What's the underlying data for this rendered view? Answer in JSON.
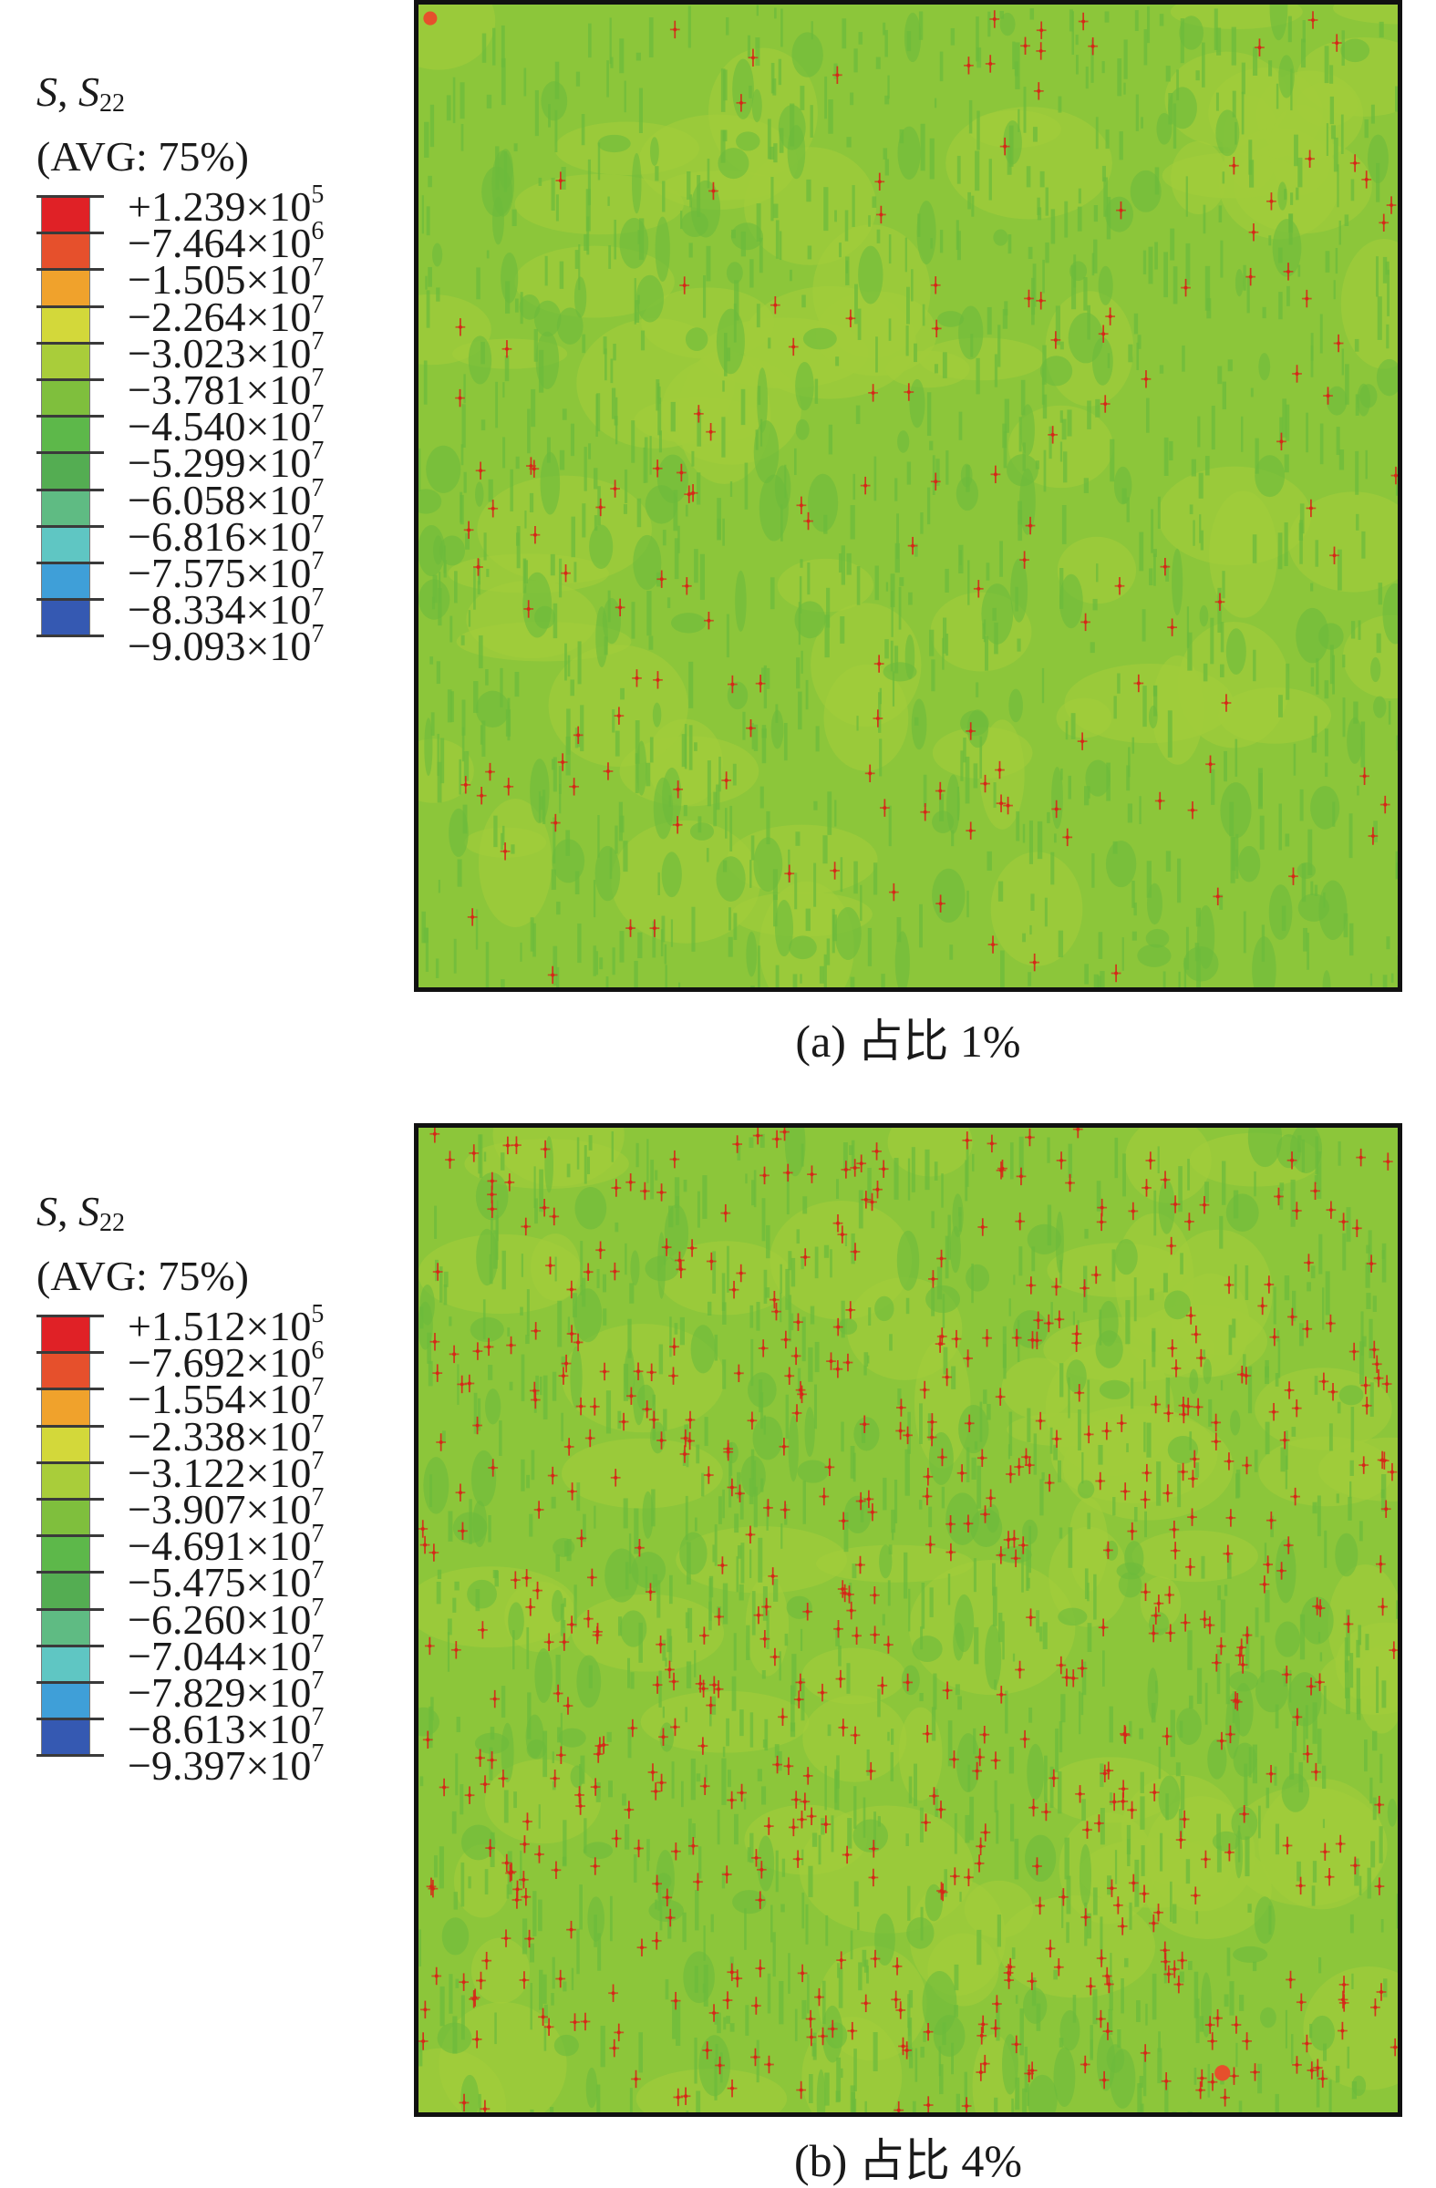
{
  "colors": {
    "background": "#ffffff",
    "plot_base": "#8cc63a",
    "plot_band": "#6cbb3c",
    "plot_light": "#a2cc3a",
    "hotspot": "#d62718",
    "frame": "#111111",
    "scale": [
      "#e02126",
      "#e6502c",
      "#f0a22c",
      "#d3d83a",
      "#a9cd3a",
      "#7fbf3d",
      "#5db84a",
      "#54ad52",
      "#5fbb83",
      "#5fc6c3",
      "#3f9fd8",
      "#3559b2",
      "#2a3b95"
    ]
  },
  "panels": [
    {
      "id": "a",
      "legend": {
        "title_var": "S",
        "title_comp": "S",
        "title_sub": "22",
        "avg": "(AVG: 75%)",
        "ticks": [
          {
            "sign": "+",
            "mant": "1.239",
            "exp": "5"
          },
          {
            "sign": "−",
            "mant": "7.464",
            "exp": "6"
          },
          {
            "sign": "−",
            "mant": "1.505",
            "exp": "7"
          },
          {
            "sign": "−",
            "mant": "2.264",
            "exp": "7"
          },
          {
            "sign": "−",
            "mant": "3.023",
            "exp": "7"
          },
          {
            "sign": "−",
            "mant": "3.781",
            "exp": "7"
          },
          {
            "sign": "−",
            "mant": "4.540",
            "exp": "7"
          },
          {
            "sign": "−",
            "mant": "5.299",
            "exp": "7"
          },
          {
            "sign": "−",
            "mant": "6.058",
            "exp": "7"
          },
          {
            "sign": "−",
            "mant": "6.816",
            "exp": "7"
          },
          {
            "sign": "−",
            "mant": "7.575",
            "exp": "7"
          },
          {
            "sign": "−",
            "mant": "8.334",
            "exp": "7"
          },
          {
            "sign": "−",
            "mant": "9.093",
            "exp": "7"
          }
        ]
      },
      "caption": "(a) 占比 1%"
    },
    {
      "id": "b",
      "legend": {
        "title_var": "S",
        "title_comp": "S",
        "title_sub": "22",
        "avg": "(AVG: 75%)",
        "ticks": [
          {
            "sign": "+",
            "mant": "1.512",
            "exp": "5"
          },
          {
            "sign": "−",
            "mant": "7.692",
            "exp": "6"
          },
          {
            "sign": "−",
            "mant": "1.554",
            "exp": "7"
          },
          {
            "sign": "−",
            "mant": "2.338",
            "exp": "7"
          },
          {
            "sign": "−",
            "mant": "3.122",
            "exp": "7"
          },
          {
            "sign": "−",
            "mant": "3.907",
            "exp": "7"
          },
          {
            "sign": "−",
            "mant": "4.691",
            "exp": "7"
          },
          {
            "sign": "−",
            "mant": "5.475",
            "exp": "7"
          },
          {
            "sign": "−",
            "mant": "6.260",
            "exp": "7"
          },
          {
            "sign": "−",
            "mant": "7.044",
            "exp": "7"
          },
          {
            "sign": "−",
            "mant": "7.829",
            "exp": "7"
          },
          {
            "sign": "−",
            "mant": "8.613",
            "exp": "7"
          },
          {
            "sign": "−",
            "mant": "9.397",
            "exp": "7"
          }
        ]
      },
      "caption": "(b) 占比 4%"
    }
  ]
}
